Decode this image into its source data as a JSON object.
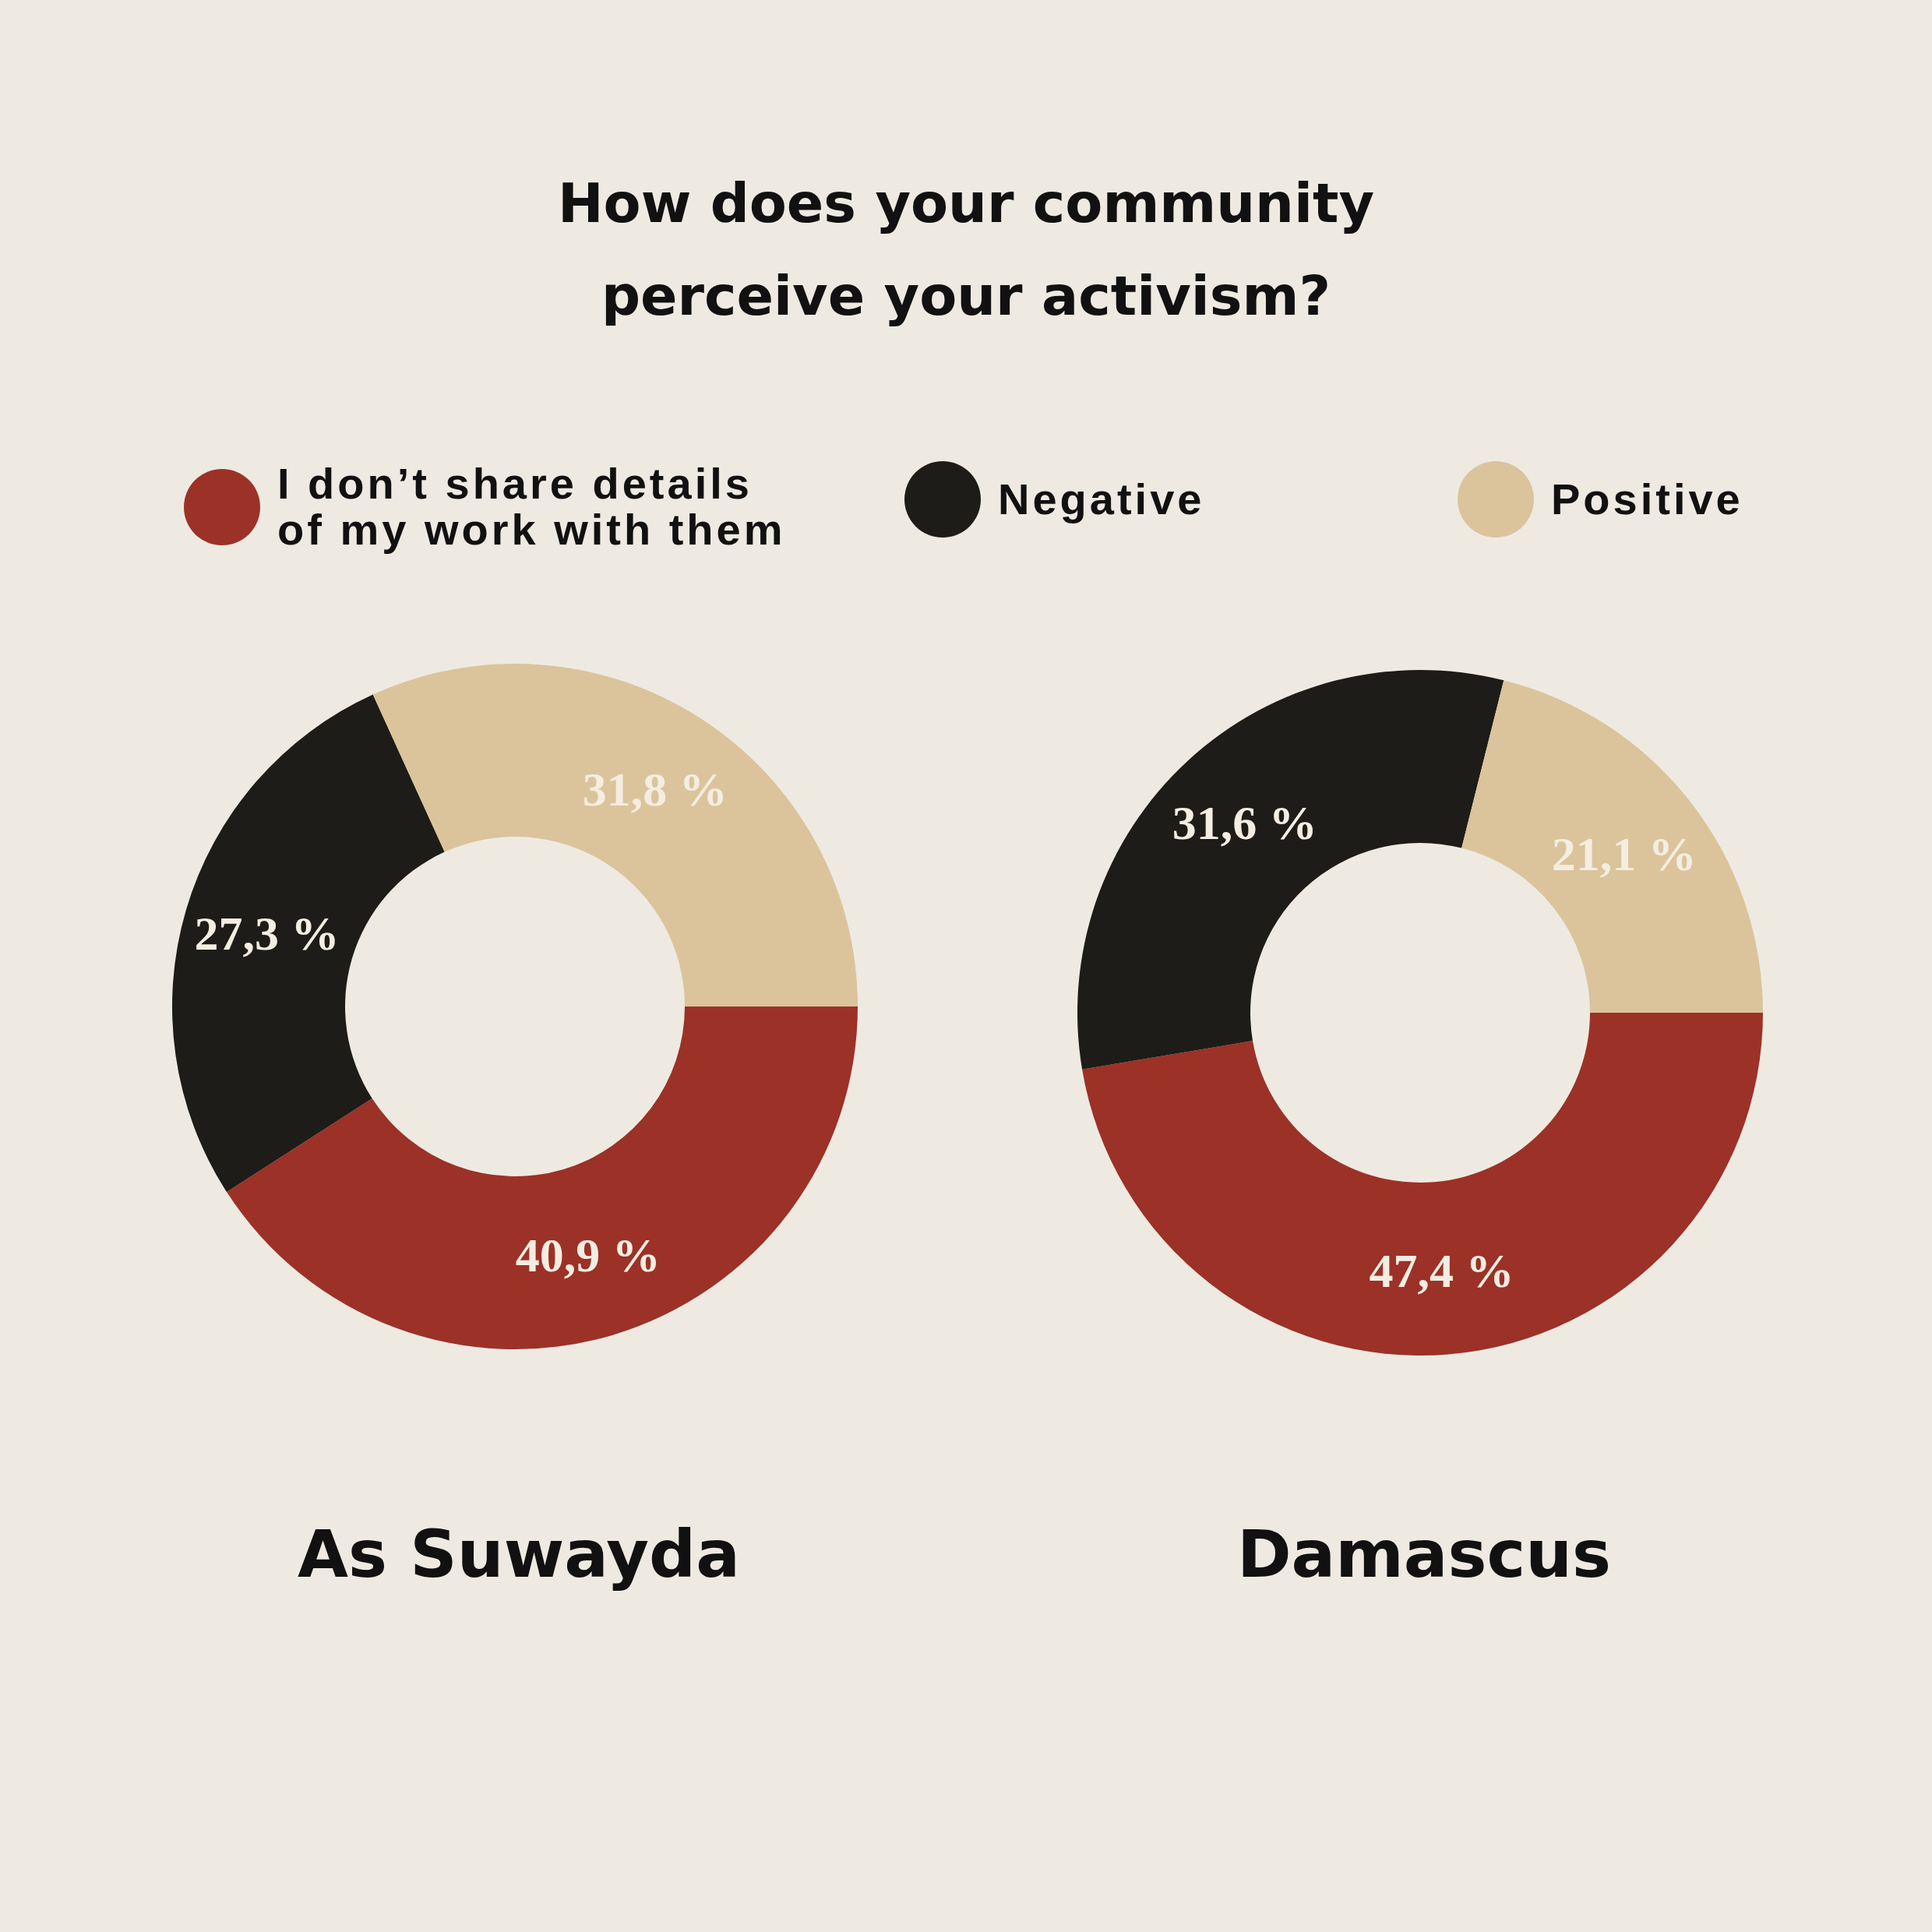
{
  "chart_data": {
    "type": "donut",
    "title": "How does your community perceive your activism?",
    "legend": "top",
    "categories": [
      "I don’t share details of my work with them",
      "Negative",
      "Positive"
    ],
    "colors": [
      "#9c3127",
      "#1d1c18",
      "#dbc49b"
    ],
    "series": [
      {
        "name": "As Suwayda",
        "values": [
          40.9,
          27.3,
          31.8
        ],
        "value_labels": [
          "40,9 %",
          "27,3 %",
          "31,8 %"
        ]
      },
      {
        "name": "Damascus",
        "values": [
          47.4,
          31.6,
          21.1
        ],
        "value_labels": [
          "47,4 %",
          "31,6 %",
          "21,1 %"
        ]
      }
    ]
  }
}
